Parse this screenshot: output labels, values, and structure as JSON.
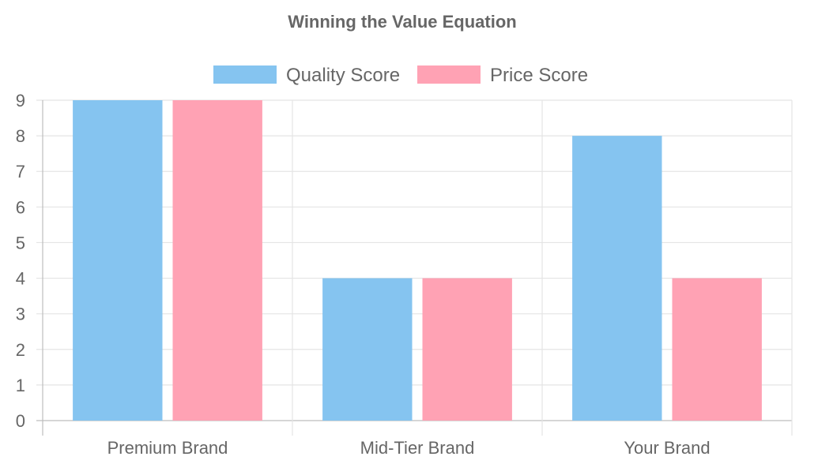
{
  "chart_data": {
    "type": "bar",
    "title": "Winning the Value Equation",
    "categories": [
      "Premium Brand",
      "Mid-Tier Brand",
      "Your Brand"
    ],
    "series": [
      {
        "name": "Quality Score",
        "values": [
          9,
          4,
          8
        ],
        "color": "#85c4f0",
        "border_color": "#36a2eb"
      },
      {
        "name": "Price Score",
        "values": [
          9,
          4,
          4
        ],
        "color": "#ffa2b4",
        "border_color": "#ff6384"
      }
    ],
    "xlabel": "",
    "ylabel": "",
    "ylim": [
      0,
      9
    ],
    "yticks": [
      "0",
      "1",
      "2",
      "3",
      "4",
      "5",
      "6",
      "7",
      "8",
      "9"
    ],
    "grid": true,
    "legend_position": "top"
  }
}
